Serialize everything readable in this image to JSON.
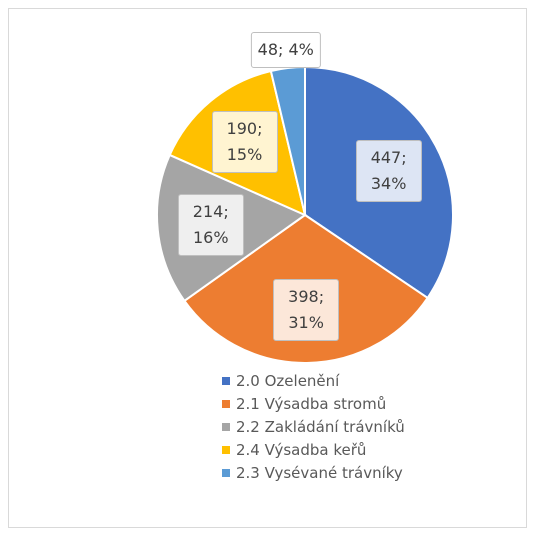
{
  "chart_data": {
    "type": "pie",
    "categories": [
      "2.0 Ozelenění",
      "2.1 Výsadba stromů",
      "2.2 Zakládání trávníků",
      "2.4 Výsadba keřů",
      "2.3 Vysévané trávníky"
    ],
    "values": [
      447,
      398,
      214,
      190,
      48
    ],
    "value_labels": [
      "447; 34%",
      "398; 31%",
      "214; 16%",
      "190; 15%",
      "48; 4%"
    ],
    "colors": [
      "#4472c4",
      "#ed7d31",
      "#a5a5a5",
      "#ffc000",
      "#5b9bd5"
    ],
    "legend": "bottom"
  }
}
